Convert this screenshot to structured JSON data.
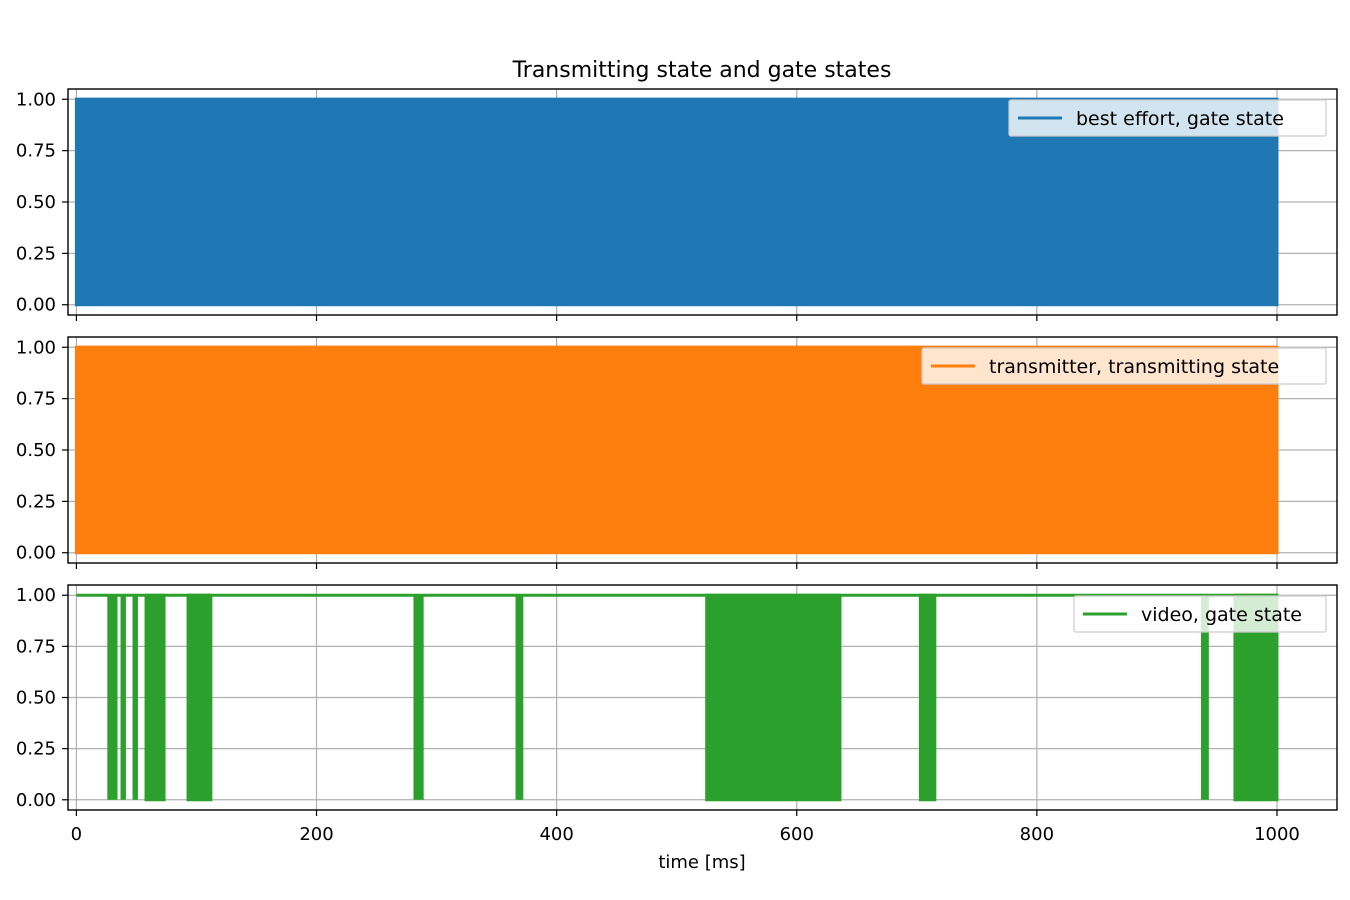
{
  "chart_data": {
    "type": "line",
    "title": "Transmitting state and gate states",
    "xlabel": "time [ms]",
    "xlim": [
      -7,
      1050
    ],
    "ylim": [
      -0.05,
      1.05
    ],
    "x_ticks": [
      0,
      200,
      400,
      600,
      800,
      1000
    ],
    "x_tick_labels": [
      "0",
      "200",
      "400",
      "600",
      "800",
      "1000"
    ],
    "y_ticks": [
      0.0,
      0.25,
      0.5,
      0.75,
      1.0
    ],
    "y_tick_labels": [
      "0.00",
      "0.25",
      "0.50",
      "0.75",
      "1.00"
    ],
    "grid": true,
    "legend_position": "upper-right",
    "subplots": [
      {
        "legend": "best effort, gate state",
        "color": "#1f77b4",
        "baseline": 1,
        "x_start": 0,
        "x_end": 1000,
        "dense_toggle_ranges": [
          [
            0,
            1000
          ]
        ],
        "toggle_times": []
      },
      {
        "legend": "transmitter, transmitting state",
        "color": "#ff7f0e",
        "baseline": 1,
        "x_start": 0,
        "x_end": 1000,
        "dense_toggle_ranges": [
          [
            0,
            1000
          ]
        ],
        "toggle_times": []
      },
      {
        "legend": "video, gate state",
        "color": "#2ca02c",
        "baseline": 1,
        "x_start": 0,
        "x_end": 1000,
        "dense_toggle_ranges": [
          [
            58,
            73
          ],
          [
            93,
            112
          ],
          [
            525,
            636
          ],
          [
            703,
            715
          ],
          [
            965,
            1000
          ]
        ],
        "toggle_times": [
          27,
          29,
          31,
          33,
          38,
          40,
          48,
          50,
          282,
          284,
          286,
          288,
          367,
          369,
          371,
          938,
          940,
          942
        ]
      }
    ]
  }
}
